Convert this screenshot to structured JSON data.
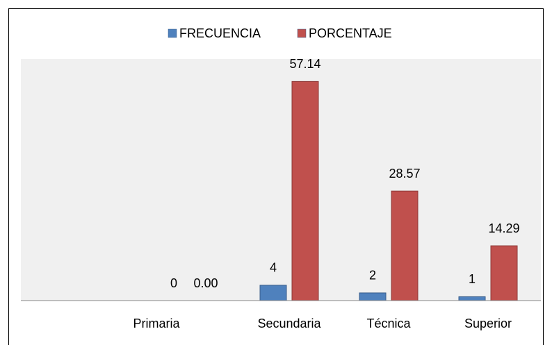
{
  "chart_data": {
    "type": "bar",
    "categories": [
      "Primaria",
      "Secundaria",
      "Técnica",
      "Superior"
    ],
    "series": [
      {
        "name": "FRECUENCIA",
        "color": "#4f81bd",
        "values": [
          0,
          4,
          2,
          1
        ]
      },
      {
        "name": "PORCENTAJE",
        "color": "#c0504d",
        "values": [
          0,
          57.14,
          28.57,
          14.29
        ],
        "value_labels": [
          "0.00",
          "57.14",
          "28.57",
          "14.29"
        ]
      }
    ],
    "ylim": [
      0,
      63
    ]
  }
}
